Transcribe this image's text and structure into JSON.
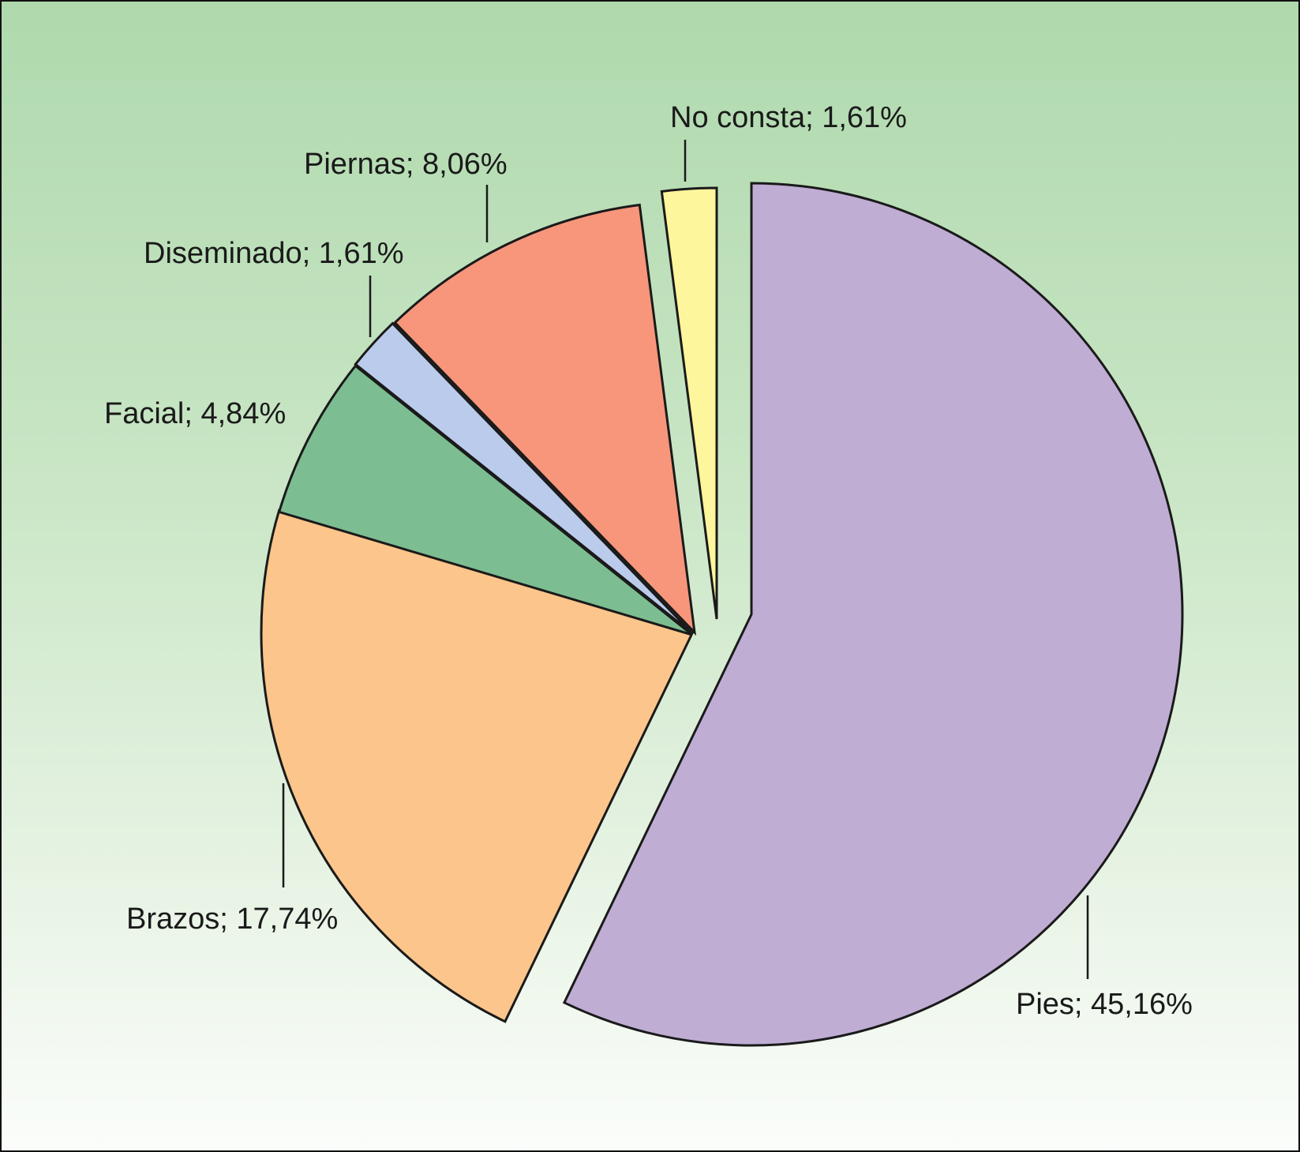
{
  "chart_data": {
    "type": "pie",
    "title": "",
    "slices": [
      {
        "label": "Pies; 45,16%",
        "category": "Pies",
        "value": 45.16,
        "color": "#bfadd4"
      },
      {
        "label": "Brazos; 17,74%",
        "category": "Brazos",
        "value": 17.74,
        "color": "#fbc58b"
      },
      {
        "label": "Facial; 4,84%",
        "category": "Facial",
        "value": 4.84,
        "color": "#7dbd92"
      },
      {
        "label": "Diseminado; 1,61%",
        "category": "Diseminado",
        "value": 1.61,
        "color": "#bbcbeb"
      },
      {
        "label": "Piernas; 8,06%",
        "category": "Piernas",
        "value": 8.06,
        "color": "#f7967b"
      },
      {
        "label": "No consta; 1,61%",
        "category": "No consta",
        "value": 1.61,
        "color": "#fdf69c"
      }
    ],
    "legend": "none",
    "labels_placement": "outside with leader lines",
    "exploded": true
  },
  "colors": {
    "background_top": "#afd9ad",
    "background_bottom": "#fbfdfb",
    "outline": "#1a1a1a"
  }
}
